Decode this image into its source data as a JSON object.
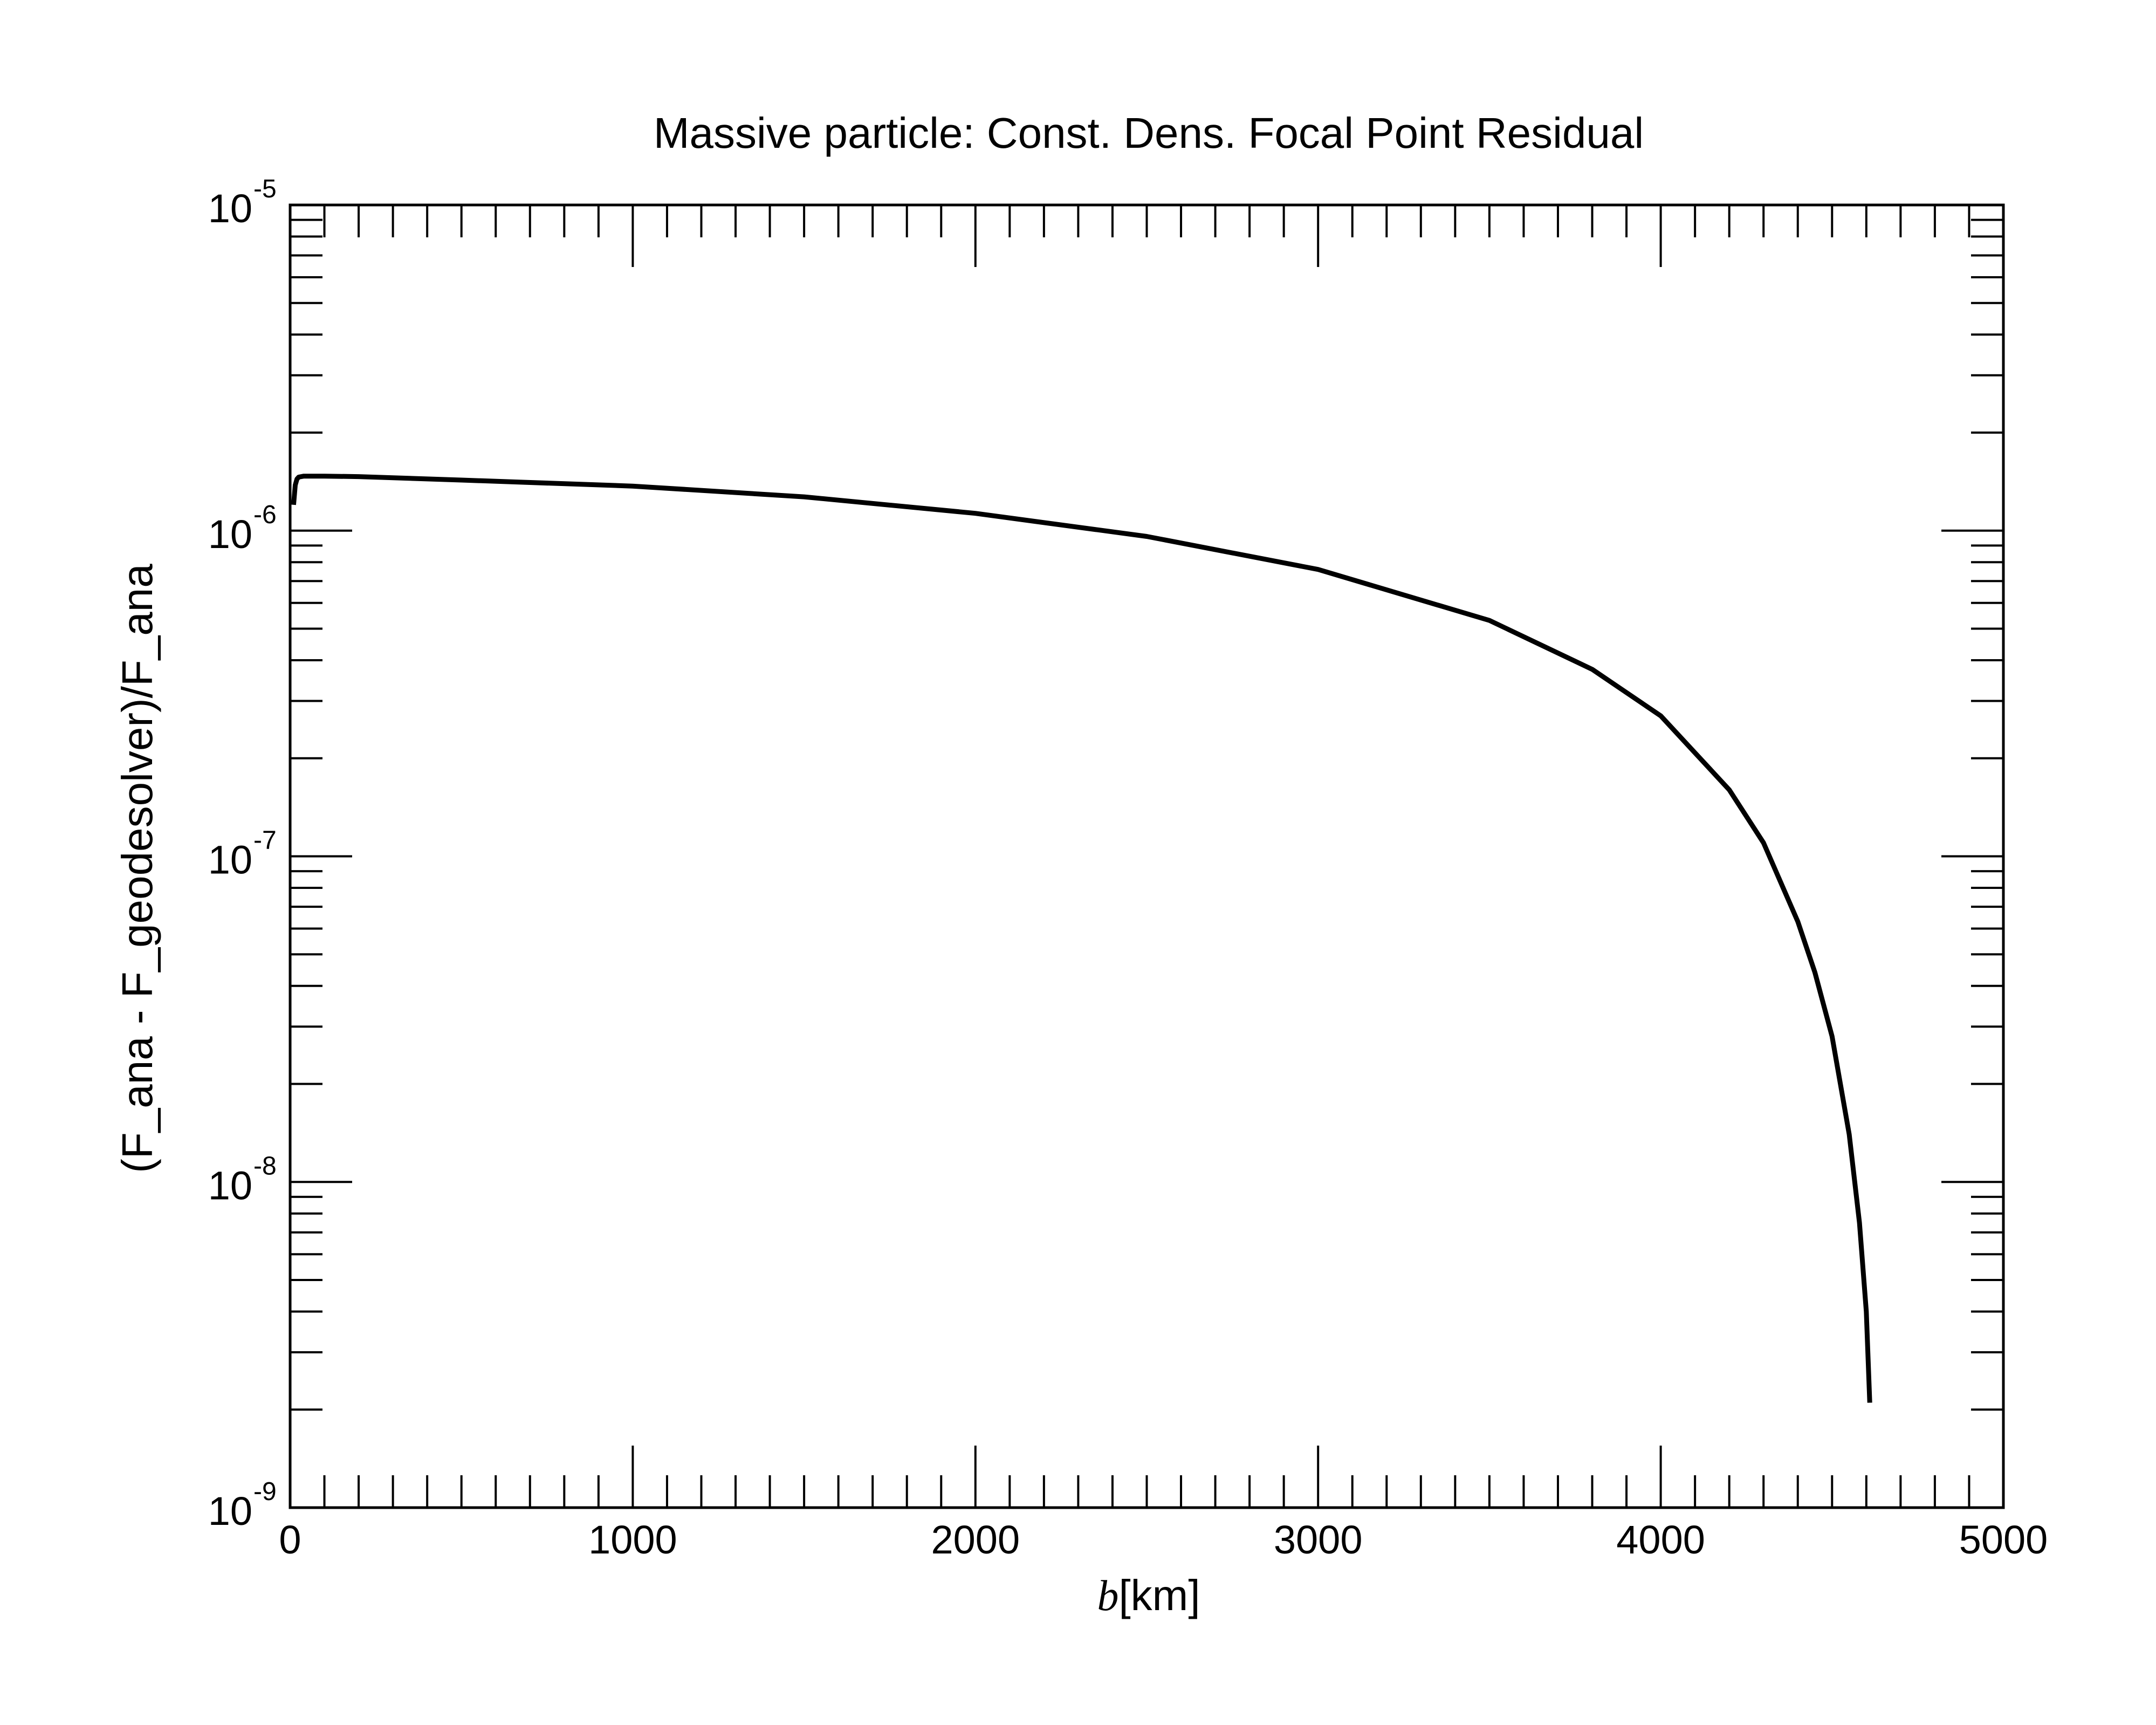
{
  "chart_data": {
    "type": "line",
    "title": "Massive particle: Const. Dens. Focal Point Residual",
    "xlabel": {
      "symbol": "b",
      "unit": "[km]"
    },
    "ylabel": "(F_ana - F_geodesolver)/F_ana",
    "xlim": [
      0,
      5000
    ],
    "ylim": [
      1e-09,
      1e-05
    ],
    "yscale": "log",
    "grid": false,
    "x_ticks": [
      {
        "value": 0,
        "label": "0"
      },
      {
        "value": 1000,
        "label": "1000"
      },
      {
        "value": 2000,
        "label": "2000"
      },
      {
        "value": 3000,
        "label": "3000"
      },
      {
        "value": 4000,
        "label": "4000"
      },
      {
        "value": 5000,
        "label": "5000"
      }
    ],
    "y_ticks": [
      {
        "value": 1e-09,
        "base": "10",
        "exp": "-9"
      },
      {
        "value": 1e-08,
        "base": "10",
        "exp": "-8"
      },
      {
        "value": 1e-07,
        "base": "10",
        "exp": "-7"
      },
      {
        "value": 1e-06,
        "base": "10",
        "exp": "-6"
      },
      {
        "value": 1e-05,
        "base": "10",
        "exp": "-5"
      }
    ],
    "series": [
      {
        "color": "#000000",
        "x": [
          10,
          15,
          20,
          25,
          40,
          100,
          200,
          500,
          1000,
          1500,
          2000,
          2500,
          3000,
          3500,
          3800,
          4000,
          4200,
          4300,
          4400,
          4450,
          4500,
          4550,
          4580,
          4600,
          4610
        ],
        "y": [
          1.2e-06,
          1.38e-06,
          1.44e-06,
          1.46e-06,
          1.47e-06,
          1.47e-06,
          1.465e-06,
          1.43e-06,
          1.37e-06,
          1.27e-06,
          1.13e-06,
          9.6e-07,
          7.6e-07,
          5.3e-07,
          3.75e-07,
          2.7e-07,
          1.6e-07,
          1.1e-07,
          6.3e-08,
          4.4e-08,
          2.8e-08,
          1.4e-08,
          7.5e-09,
          4e-09,
          2.1e-09
        ]
      }
    ]
  }
}
